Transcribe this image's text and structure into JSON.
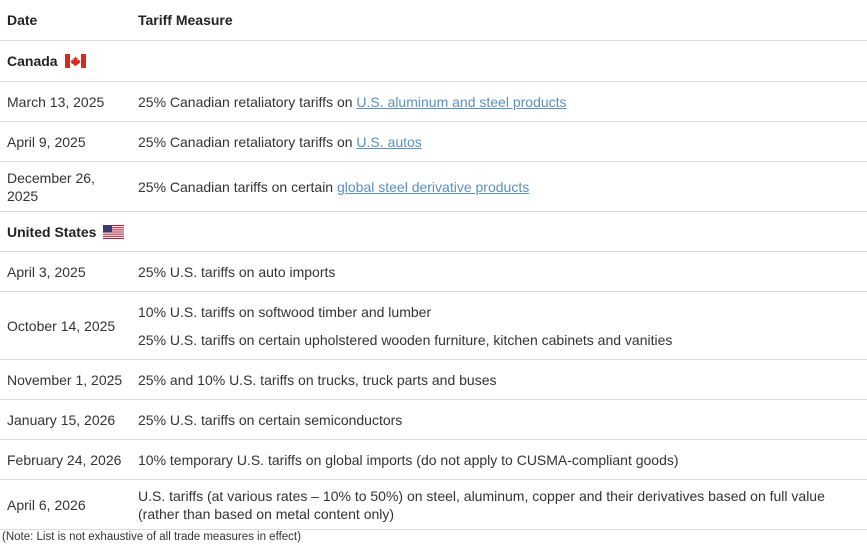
{
  "header": {
    "date": "Date",
    "measure": "Tariff Measure"
  },
  "sections": {
    "canada": {
      "label": "Canada",
      "flag_icon": "canada-flag-icon"
    },
    "us": {
      "label": "United States",
      "flag_icon": "us-flag-icon"
    }
  },
  "rows": [
    {
      "date": "March 13, 2025",
      "pre": "25% Canadian retaliatory tariffs on ",
      "link": "U.S. aluminum and steel products"
    },
    {
      "date": "April 9, 2025",
      "pre": "25% Canadian retaliatory tariffs on ",
      "link": "U.S. autos"
    },
    {
      "date": "December 26, 2025",
      "pre": "25% Canadian tariffs on certain ",
      "link": "global steel derivative products"
    },
    {
      "date": "April 3, 2025",
      "text": "25% U.S. tariffs on auto imports"
    },
    {
      "date": "October 14, 2025",
      "text1": "10% U.S. tariffs on softwood timber and lumber",
      "text2": "25% U.S. tariffs on certain upholstered wooden furniture, kitchen cabinets and vanities"
    },
    {
      "date": "November 1, 2025",
      "text": "25% and 10% U.S. tariffs on trucks, truck parts and buses"
    },
    {
      "date": "January 15, 2026",
      "text": "25% U.S. tariffs on certain semiconductors"
    },
    {
      "date": "February 24, 2026",
      "text": "10% temporary U.S. tariffs on global imports (do not apply to CUSMA-compliant goods)"
    },
    {
      "date": "April 6, 2026",
      "text": "U.S. tariffs (at various rates – 10% to 50%) on steel, aluminum, copper and their derivatives based on full value (rather than based on metal content only)"
    }
  ],
  "note": "(Note: List is not exhaustive of all trade measures in effect)",
  "colors": {
    "link": "#5b8fbf",
    "border": "#dcdcdc",
    "text": "#333333"
  }
}
